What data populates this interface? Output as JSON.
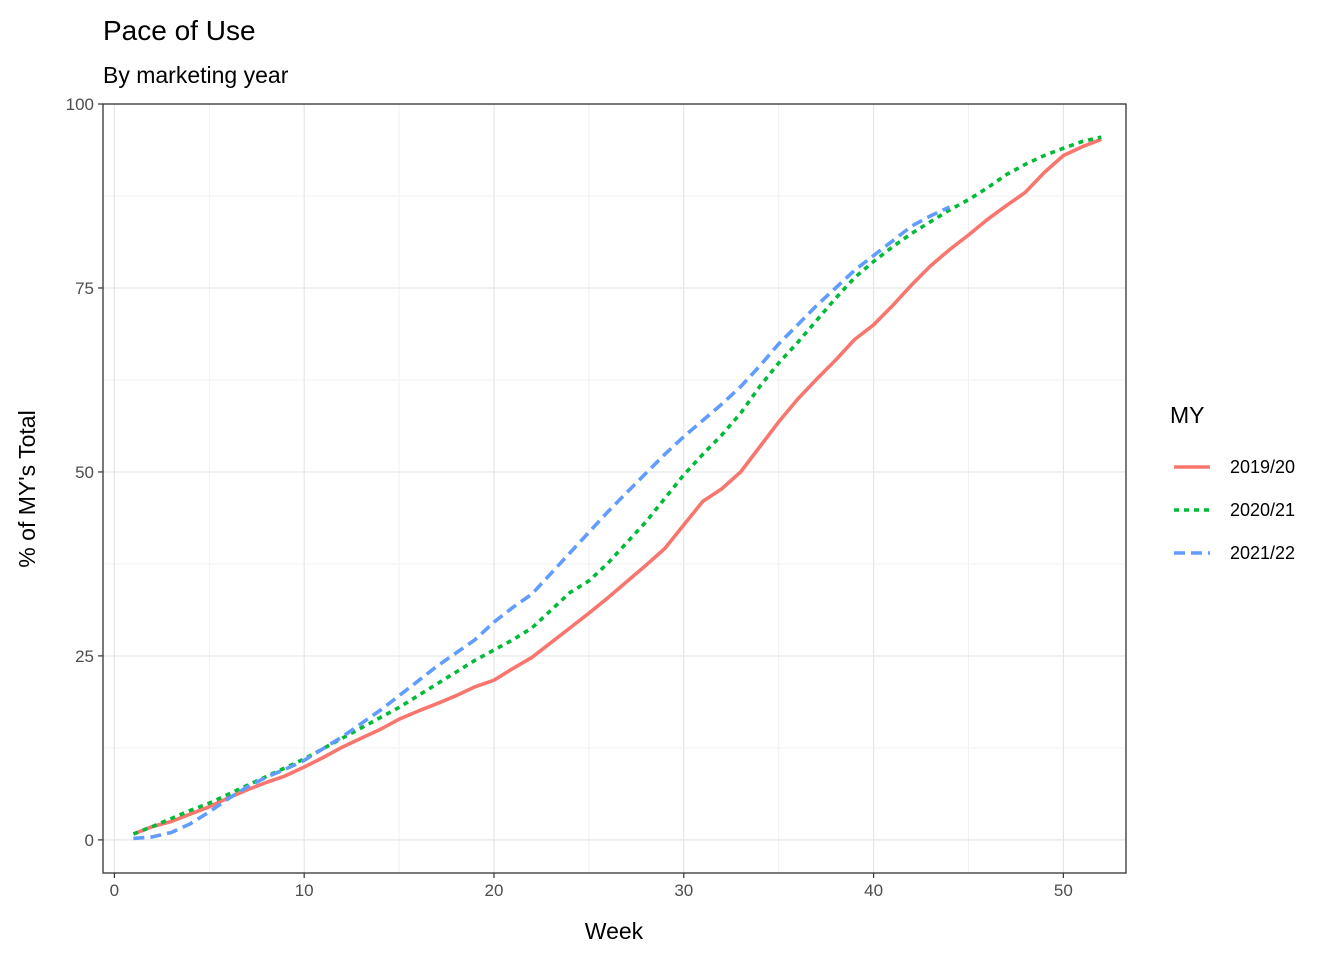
{
  "chart_data": {
    "type": "line",
    "title": "Pace of Use",
    "subtitle": "By marketing year",
    "xlabel": "Week",
    "ylabel": "% of MY's Total",
    "xlim": [
      -0.6,
      53.3
    ],
    "ylim": [
      -4.5,
      100
    ],
    "xticks": [
      "0",
      "10",
      "20",
      "30",
      "40",
      "50"
    ],
    "yticks": [
      "0",
      "25",
      "50",
      "75",
      "100"
    ],
    "grid": true,
    "legend": {
      "title": "MY",
      "position": "right"
    },
    "series": [
      {
        "name": "2019/20",
        "color": "#F8766D",
        "dash": "solid",
        "x": [
          1,
          2,
          3,
          4,
          5,
          6,
          7,
          8,
          9,
          10,
          11,
          12,
          13,
          14,
          15,
          16,
          17,
          18,
          19,
          20,
          21,
          22,
          23,
          24,
          25,
          26,
          27,
          28,
          29,
          30,
          31,
          32,
          33,
          34,
          35,
          36,
          37,
          38,
          39,
          40,
          41,
          42,
          43,
          44,
          45,
          46,
          47,
          48,
          49,
          50,
          51,
          52
        ],
        "values": [
          0.8,
          1.8,
          2.5,
          3.5,
          4.5,
          5.7,
          6.8,
          7.8,
          8.7,
          9.9,
          11.2,
          12.6,
          13.8,
          15.0,
          16.4,
          17.5,
          18.5,
          19.6,
          20.8,
          21.7,
          23.3,
          24.8,
          26.8,
          28.8,
          30.8,
          32.9,
          35.1,
          37.3,
          39.6,
          42.8,
          46.0,
          47.7,
          50.0,
          53.4,
          56.8,
          59.9,
          62.6,
          65.2,
          68.0,
          70.0,
          72.6,
          75.4,
          78.0,
          80.2,
          82.2,
          84.3,
          86.2,
          88.0,
          90.7,
          93.0,
          94.2,
          95.2
        ]
      },
      {
        "name": "2020/21",
        "color": "#00BA38",
        "dash": "dotted",
        "x": [
          1,
          2,
          3,
          4,
          5,
          6,
          7,
          8,
          9,
          10,
          11,
          12,
          13,
          14,
          15,
          16,
          17,
          18,
          19,
          20,
          21,
          22,
          23,
          24,
          25,
          26,
          27,
          28,
          29,
          30,
          31,
          32,
          33,
          34,
          35,
          36,
          37,
          38,
          39,
          40,
          41,
          42,
          43,
          44,
          45,
          46,
          47,
          48,
          49,
          50,
          51,
          52
        ],
        "values": [
          0.8,
          1.8,
          2.9,
          4.0,
          5.0,
          6.2,
          7.4,
          8.6,
          9.8,
          11.0,
          12.4,
          13.8,
          15.2,
          16.6,
          18.0,
          19.6,
          21.2,
          22.8,
          24.4,
          25.8,
          27.2,
          28.8,
          31.2,
          33.6,
          35.2,
          37.6,
          40.4,
          43.2,
          46.4,
          49.6,
          52.4,
          55.0,
          58.0,
          61.6,
          64.8,
          67.6,
          70.6,
          73.6,
          76.4,
          78.6,
          80.6,
          82.4,
          84.0,
          85.6,
          87.0,
          88.6,
          90.4,
          91.8,
          93.0,
          94.0,
          94.9,
          95.5
        ]
      },
      {
        "name": "2021/22",
        "color": "#619CFF",
        "dash": "dashed",
        "x": [
          1,
          2,
          3,
          4,
          5,
          6,
          7,
          8,
          9,
          10,
          11,
          12,
          13,
          14,
          15,
          16,
          17,
          18,
          19,
          20,
          21,
          22,
          23,
          24,
          25,
          26,
          27,
          28,
          29,
          30,
          31,
          32,
          33,
          34,
          35,
          36,
          37,
          38,
          39,
          40,
          41,
          42,
          43,
          44
        ],
        "values": [
          0.2,
          0.4,
          1.0,
          2.2,
          3.8,
          5.6,
          7.2,
          8.5,
          9.6,
          10.8,
          12.4,
          14.0,
          15.8,
          17.6,
          19.6,
          21.6,
          23.6,
          25.4,
          27.2,
          29.6,
          31.6,
          33.4,
          36.2,
          39.0,
          41.8,
          44.6,
          47.2,
          49.8,
          52.4,
          54.8,
          57.0,
          59.2,
          61.6,
          64.4,
          67.4,
          70.0,
          72.6,
          75.0,
          77.4,
          79.4,
          81.4,
          83.4,
          84.8,
          86.0
        ]
      }
    ]
  }
}
